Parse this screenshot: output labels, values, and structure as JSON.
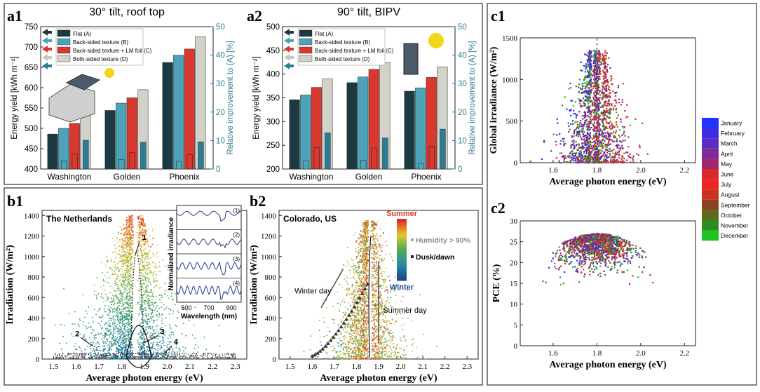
{
  "chart_data": [
    {
      "panel": "a1",
      "type": "bar",
      "title": "30° tilt, roof top",
      "categories": [
        "Washington",
        "Golden",
        "Phoenix"
      ],
      "ylabel": "Energy yield [kWh m⁻²]",
      "ylabel2": "Relative improvement to (A) [%]",
      "ylim": [
        400,
        750
      ],
      "ylim2": [
        0,
        50
      ],
      "yticks": [
        400,
        450,
        500,
        550,
        600,
        650,
        700,
        750
      ],
      "yticks2": [
        0,
        10,
        20,
        30,
        40,
        50
      ],
      "series": [
        {
          "name": "Flat (A)",
          "color": "#1b3a41",
          "values": [
            486,
            544,
            662
          ]
        },
        {
          "name": "Back-sided texture (B)",
          "color": "#4fa3b8",
          "values": [
            500,
            562,
            680
          ]
        },
        {
          "name": "Back-sided texture + LM foil (C)",
          "color": "#d9382e",
          "values": [
            512,
            575,
            695
          ]
        },
        {
          "name": "Both-sided texture (D)",
          "color": "#d2d2c9",
          "values": [
            535,
            595,
            725
          ]
        }
      ],
      "improvement_series": [
        {
          "color": "#4fa3b8",
          "values": [
            2.9,
            3.3,
            2.7
          ]
        },
        {
          "color": "#d9382e",
          "values": [
            5.3,
            5.7,
            5.0
          ]
        },
        {
          "color": "#2e7c93",
          "values": [
            10.1,
            9.4,
            9.5
          ]
        }
      ]
    },
    {
      "panel": "a2",
      "type": "bar",
      "title": "90° tilt, BIPV",
      "categories": [
        "Washington",
        "Golden",
        "Phoenix"
      ],
      "ylabel": "Energy yield [kWh m⁻²]",
      "ylabel2": "Relative improvement to (A) [%]",
      "ylim": [
        200,
        500
      ],
      "ylim2": [
        0,
        50
      ],
      "yticks": [
        200,
        250,
        300,
        350,
        400,
        450,
        500
      ],
      "yticks2": [
        0,
        10,
        20,
        30,
        40,
        50
      ],
      "series": [
        {
          "name": "Flat (A)",
          "color": "#1b3a41",
          "values": [
            346,
            382,
            364
          ]
        },
        {
          "name": "Back-sided texture (B)",
          "color": "#4fa3b8",
          "values": [
            356,
            394,
            371
          ]
        },
        {
          "name": "Back-sided texture + LM foil (C)",
          "color": "#d9382e",
          "values": [
            372,
            410,
            393
          ]
        },
        {
          "name": "Both-sided texture (D)",
          "color": "#d2d2c9",
          "values": [
            390,
            424,
            415
          ]
        }
      ],
      "improvement_series": [
        {
          "color": "#4fa3b8",
          "values": [
            2.9,
            3.1,
            2.0
          ]
        },
        {
          "color": "#d9382e",
          "values": [
            7.5,
            7.4,
            8.0
          ]
        },
        {
          "color": "#2e7c93",
          "values": [
            12.7,
            10.9,
            14.0
          ]
        }
      ]
    },
    {
      "panel": "b1",
      "type": "scatter",
      "title": "The Netherlands",
      "xlabel": "Average photon energy (eV)",
      "ylabel": "Irradiation (W/m²)",
      "xlim": [
        1.45,
        2.35
      ],
      "ylim": [
        0,
        1450
      ],
      "xticks": [
        "1.5",
        "1.6",
        "1.7",
        "1.8",
        "1.9",
        "2.0",
        "2.1",
        "2.2",
        "2.3"
      ],
      "yticks": [
        "0",
        "200",
        "400",
        "600",
        "800",
        "1000",
        "1200",
        "1400"
      ],
      "peak_x": 1.86,
      "annotations": [
        "1",
        "2",
        "3",
        "4"
      ],
      "inset": {
        "ylabel": "Normalized irradiance",
        "xlabel": "Wavelength (nm)",
        "xticks": [
          "500",
          "700",
          "900"
        ],
        "labels": [
          "(1)",
          "(2)",
          "(3)",
          "(4)"
        ]
      }
    },
    {
      "panel": "b2",
      "type": "scatter",
      "title": "Colorado, US",
      "xlabel": "Average photon energy (eV)",
      "ylabel": "Irradiation (W/m²)",
      "xlim": [
        1.45,
        2.35
      ],
      "ylim": [
        0,
        1450
      ],
      "xticks": [
        "1.5",
        "1.6",
        "1.7",
        "1.8",
        "1.9",
        "2.0",
        "2.1",
        "2.2",
        "2.3"
      ],
      "yticks": [
        "0",
        "200",
        "400",
        "600",
        "800",
        "1000",
        "1200",
        "1400"
      ],
      "peak_x": 1.86,
      "annotations": [
        "Winter day",
        "Summer day"
      ],
      "colorbar": {
        "top": "Summer",
        "bottom": "Winter"
      },
      "legend": [
        "Humidity > 90%",
        "Dusk/dawn"
      ]
    },
    {
      "panel": "c1",
      "type": "scatter",
      "xlabel": "Average photon energy (eV)",
      "ylabel": "Global irradiance (W/m²)",
      "xlim": [
        1.45,
        2.25
      ],
      "ylim": [
        0,
        1500
      ],
      "xticks": [
        "1.6",
        "1.8",
        "2.0",
        "2.2"
      ],
      "yticks": [
        "0",
        "500",
        "1000",
        "1500"
      ],
      "peak_x": 1.8
    },
    {
      "panel": "c2",
      "type": "scatter",
      "xlabel": "Average photon energy (eV)",
      "ylabel": "PCE (%)",
      "xlim": [
        1.45,
        2.25
      ],
      "ylim": [
        0,
        30
      ],
      "xticks": [
        "1.6",
        "1.8",
        "2.0",
        "2.2"
      ],
      "yticks": [
        "0",
        "5",
        "10",
        "15",
        "20",
        "25",
        "30"
      ],
      "peak_x": 1.8
    }
  ],
  "month_legend": [
    {
      "name": "January",
      "color": "#1f32ff"
    },
    {
      "name": "February",
      "color": "#3a2ee0"
    },
    {
      "name": "March",
      "color": "#5a2cc4"
    },
    {
      "name": "April",
      "color": "#7c2a9c"
    },
    {
      "name": "May",
      "color": "#a0286e"
    },
    {
      "name": "June",
      "color": "#d82a2a"
    },
    {
      "name": "July",
      "color": "#f02424"
    },
    {
      "name": "August",
      "color": "#c8321e"
    },
    {
      "name": "September",
      "color": "#8a4420"
    },
    {
      "name": "October",
      "color": "#5e6a1e"
    },
    {
      "name": "November",
      "color": "#2e8c22"
    },
    {
      "name": "December",
      "color": "#1fc41f"
    }
  ]
}
